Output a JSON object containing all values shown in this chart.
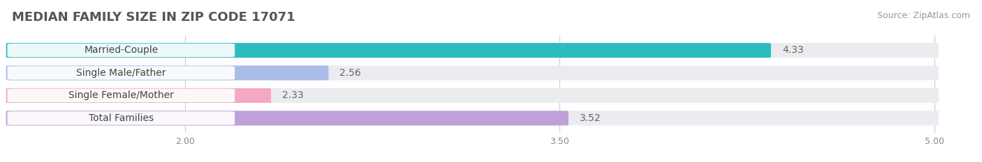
{
  "title": "MEDIAN FAMILY SIZE IN ZIP CODE 17071",
  "source": "Source: ZipAtlas.com",
  "categories": [
    "Married-Couple",
    "Single Male/Father",
    "Single Female/Mother",
    "Total Families"
  ],
  "values": [
    4.33,
    2.56,
    2.33,
    3.52
  ],
  "bar_colors": [
    "#2bbcbe",
    "#aabce8",
    "#f4a8c4",
    "#c0a0d8"
  ],
  "xmin": 2.0,
  "xmax": 5.0,
  "xticks": [
    2.0,
    3.5,
    5.0
  ],
  "xtick_labels": [
    "2.00",
    "3.50",
    "5.00"
  ],
  "background_color": "#ffffff",
  "bar_background_color": "#ebebf0",
  "title_fontsize": 13,
  "source_fontsize": 9,
  "value_fontsize": 10,
  "label_fontsize": 10,
  "bar_height": 0.62
}
